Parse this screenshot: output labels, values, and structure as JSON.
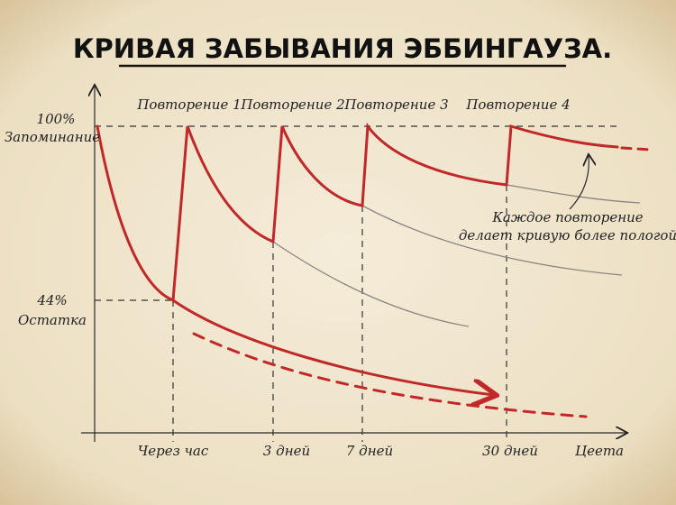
{
  "title": "КРИВАЯ ЗАБЫВАНИЯ ЭББИНГАУЗА.",
  "y_labels": [
    {
      "value": "100%",
      "caption": "Запоминание"
    },
    {
      "value": "44%",
      "caption": "Остатка"
    }
  ],
  "repetitions": [
    "Повторение 1",
    "Повторение 2",
    "Повторение 3",
    "Повторение 4"
  ],
  "x_labels": [
    "Через час",
    "3 дней",
    "7 дней",
    "30 дней",
    "Цеета"
  ],
  "annotation": [
    "Каждое повторение",
    "делает кривую более пологой"
  ]
}
